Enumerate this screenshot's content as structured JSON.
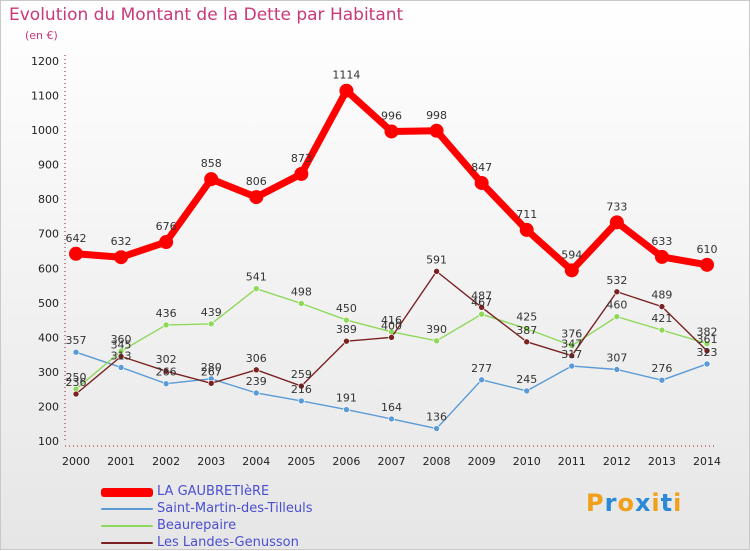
{
  "title": "Evolution du Montant de la Dette par Habitant",
  "subtitle": "(en €)",
  "logo": "Proxiti",
  "colors": {
    "title": "#c8387a",
    "legend_text": "#4a4fd0",
    "logo": [
      "#f0a01a",
      "#2a8ad8",
      "#f0a01a",
      "#2a8ad8",
      "#f0a01a",
      "#2a8ad8",
      "#f0a01a"
    ]
  },
  "chart_data": {
    "type": "line",
    "title": "Evolution du Montant de la Dette par Habitant",
    "subtitle": "(en €)",
    "xlabel": "",
    "ylabel": "",
    "x": [
      "2000",
      "2001",
      "2002",
      "2003",
      "2004",
      "2005",
      "2006",
      "2007",
      "2008",
      "2009",
      "2010",
      "2011",
      "2012",
      "2013",
      "2014"
    ],
    "ylim": [
      100,
      1200
    ],
    "yticks": [
      100,
      200,
      300,
      400,
      500,
      600,
      700,
      800,
      900,
      1000,
      1100,
      1200
    ],
    "grid": false,
    "legend_position": "bottom-left",
    "series": [
      {
        "name": "LA GAUBRETIèRE",
        "color": "#ff0000",
        "values": [
          642,
          632,
          676,
          858,
          806,
          873,
          1114,
          996,
          998,
          847,
          711,
          594,
          733,
          633,
          610
        ],
        "labels": [
          "642",
          "632",
          "676",
          "858",
          "806",
          "873",
          "1114",
          "996",
          "998",
          "847",
          "711",
          "594",
          "733",
          "633",
          "610"
        ]
      },
      {
        "name": "Saint-Martin-des-Tilleuls",
        "color": "#5a9ad6",
        "values": [
          357,
          313,
          266,
          280,
          239,
          216,
          191,
          164,
          136,
          277,
          245,
          317,
          307,
          276,
          323
        ],
        "labels": [
          "357",
          "313",
          "266",
          "280",
          "239",
          "216",
          "191",
          "164",
          "136",
          "277",
          "245",
          "317",
          "307",
          "276",
          "323"
        ]
      },
      {
        "name": "Beaurepaire",
        "color": "#8ed85a",
        "values": [
          250,
          360,
          436,
          439,
          541,
          498,
          450,
          416,
          390,
          467,
          425,
          376,
          460,
          421,
          382
        ],
        "labels": [
          "250",
          "360",
          "436",
          "439",
          "541",
          "498",
          "450",
          "416",
          "390",
          "467",
          "425",
          "376",
          "460",
          "421",
          "382"
        ]
      },
      {
        "name": "Les Landes-Genusson",
        "color": "#7a2222",
        "values": [
          236,
          345,
          302,
          267,
          306,
          259,
          389,
          400,
          591,
          487,
          387,
          347,
          532,
          489,
          361
        ],
        "labels": [
          "236",
          "345",
          "302",
          "267",
          "306",
          "259",
          "389",
          "400",
          "591",
          "487",
          "387",
          "347",
          "532",
          "489",
          "361"
        ]
      }
    ]
  }
}
